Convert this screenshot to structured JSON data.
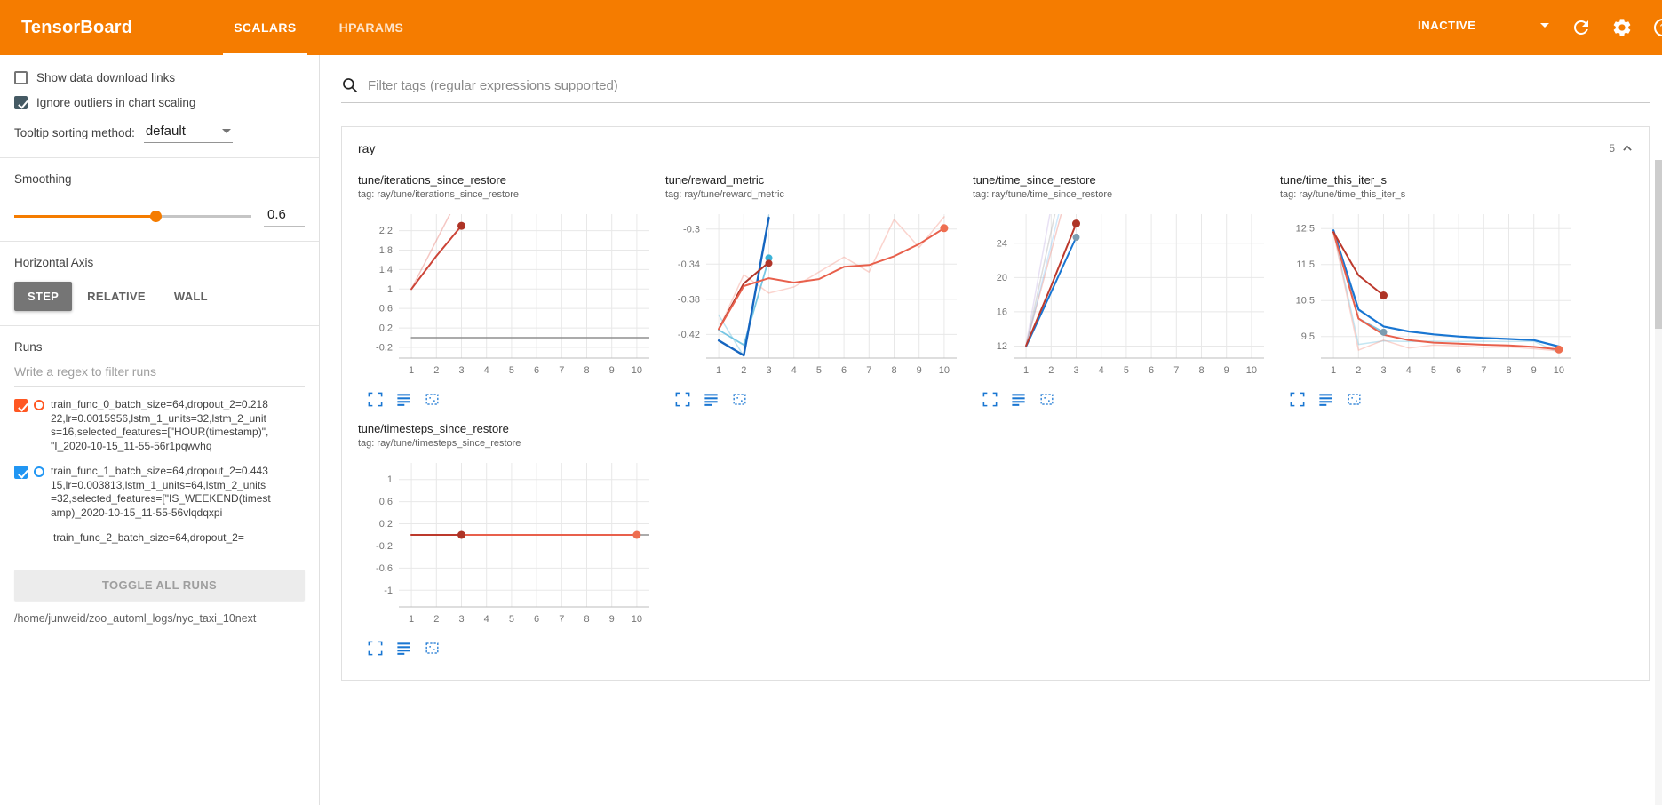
{
  "header": {
    "title": "TensorBoard",
    "tabs": [
      {
        "label": "SCALARS",
        "active": true
      },
      {
        "label": "HPARAMS",
        "active": false
      }
    ],
    "status": "INACTIVE"
  },
  "sidebar": {
    "checkboxes": [
      {
        "label": "Show data download links",
        "checked": false
      },
      {
        "label": "Ignore outliers in chart scaling",
        "checked": true
      }
    ],
    "tooltip_sorting": {
      "label": "Tooltip sorting method:",
      "value": "default"
    },
    "smoothing": {
      "label": "Smoothing",
      "value": "0.6",
      "percent": 60
    },
    "horizontal_axis": {
      "label": "Horizontal Axis",
      "options": [
        "STEP",
        "RELATIVE",
        "WALL"
      ],
      "selected": "STEP"
    },
    "runs": {
      "label": "Runs",
      "filter_placeholder": "Write a regex to filter runs",
      "items": [
        {
          "name": "train_func_0_batch_size=64,dropout_2=0.21822,lr=0.0015956,lstm_1_units=32,lstm_2_units=16,selected_features=[\"HOUR(timestamp)\", \"I_2020-10-15_11-55-56r1pqwvhq",
          "checked": true,
          "color": "#ff5722"
        },
        {
          "name": "train_func_1_batch_size=64,dropout_2=0.44315,lr=0.003813,lstm_1_units=64,lstm_2_units=32,selected_features=[\"IS_WEEKEND(timestamp)_2020-10-15_11-55-56vlqdqxpi",
          "checked": true,
          "color": "#2196f3"
        },
        {
          "name": "train_func_2_batch_size=64,dropout_2=",
          "checked": true
        }
      ],
      "toggle_all": "TOGGLE ALL RUNS",
      "path": "/home/junweid/zoo_automl_logs/nyc_taxi_10next"
    }
  },
  "main": {
    "filter_placeholder": "Filter tags (regular expressions supported)",
    "section": {
      "title": "ray",
      "count": "5"
    }
  },
  "chart_data": [
    {
      "type": "line",
      "title": "tune/iterations_since_restore",
      "tag": "tag: ray/tune/iterations_since_restore",
      "xlim": [
        0.5,
        10.5
      ],
      "ylim": [
        -0.42,
        2.54
      ],
      "xticks": [
        1,
        2,
        3,
        4,
        5,
        6,
        7,
        8,
        9,
        10
      ],
      "yticks": [
        -0.2,
        0.2,
        0.6,
        1,
        1.4,
        1.8,
        2.2
      ],
      "series": [
        {
          "name": "run0-raw",
          "color": "#e57368",
          "opacity": 0.4,
          "width": 1.5,
          "points": [
            [
              1,
              1
            ],
            [
              2,
              2
            ],
            [
              3,
              3
            ]
          ]
        },
        {
          "name": "run0-smoothed",
          "color": "#cc4437",
          "width": 2,
          "points": [
            [
              1,
              1
            ],
            [
              2,
              1.68
            ],
            [
              3,
              2.3
            ]
          ]
        },
        {
          "name": "baseline",
          "color": "#8f8f8f",
          "width": 1.5,
          "points": [
            [
              1,
              0
            ],
            [
              10.5,
              0
            ]
          ]
        }
      ],
      "markers": [
        {
          "x": 3,
          "y": 2.3,
          "color": "#ae3426"
        }
      ]
    },
    {
      "type": "line",
      "title": "tune/reward_metric",
      "tag": "tag: ray/tune/reward_metric",
      "xlim": [
        0.5,
        10.5
      ],
      "ylim": [
        -0.447,
        -0.283
      ],
      "xticks": [
        1,
        2,
        3,
        4,
        5,
        6,
        7,
        8,
        9,
        10
      ],
      "yticks": [
        -0.42,
        -0.38,
        -0.34,
        -0.3
      ],
      "series": [
        {
          "name": "lightblue-raw",
          "color": "#7ec8e3",
          "opacity": 0.5,
          "width": 1.5,
          "points": [
            [
              1,
              -0.398
            ],
            [
              2,
              -0.445
            ],
            [
              3,
              -0.284
            ]
          ]
        },
        {
          "name": "lightblue-smoothed",
          "color": "#55b9dd",
          "opacity": 0.8,
          "width": 1.8,
          "points": [
            [
              1,
              -0.415
            ],
            [
              2,
              -0.432
            ],
            [
              3,
              -0.334
            ]
          ]
        },
        {
          "name": "orange-raw",
          "color": "#f59384",
          "opacity": 0.4,
          "width": 1.5,
          "points": [
            [
              1,
              -0.414
            ],
            [
              2,
              -0.352
            ],
            [
              3,
              -0.373
            ],
            [
              4,
              -0.366
            ],
            [
              5,
              -0.349
            ],
            [
              6,
              -0.332
            ],
            [
              7,
              -0.349
            ],
            [
              8,
              -0.289
            ],
            [
              9,
              -0.321
            ],
            [
              10,
              -0.286
            ]
          ]
        },
        {
          "name": "blue",
          "color": "#1565c0",
          "width": 2.4,
          "points": [
            [
              1,
              -0.427
            ],
            [
              2,
              -0.444
            ],
            [
              3,
              -0.287
            ]
          ]
        },
        {
          "name": "darkred",
          "color": "#b03529",
          "width": 2,
          "points": [
            [
              1,
              -0.414
            ],
            [
              2,
              -0.362
            ],
            [
              3,
              -0.338
            ]
          ]
        },
        {
          "name": "orange-smoothed",
          "color": "#e8604c",
          "width": 2,
          "points": [
            [
              1,
              -0.414
            ],
            [
              2,
              -0.365
            ],
            [
              3,
              -0.356
            ],
            [
              4,
              -0.361
            ],
            [
              5,
              -0.357
            ],
            [
              6,
              -0.343
            ],
            [
              7,
              -0.341
            ],
            [
              8,
              -0.331
            ],
            [
              9,
              -0.317
            ],
            [
              10,
              -0.299
            ]
          ]
        }
      ],
      "markers": [
        {
          "x": 3,
          "y": -0.333,
          "color": "#3bb3d8",
          "r": 4
        },
        {
          "x": 3,
          "y": -0.339,
          "color": "#b03529",
          "r": 4
        },
        {
          "x": 10,
          "y": -0.299,
          "color": "#ee6e50"
        }
      ]
    },
    {
      "type": "line",
      "title": "tune/time_since_restore",
      "tag": "tag: ray/tune/time_since_restore",
      "xlim": [
        0.5,
        10.5
      ],
      "ylim": [
        10.6,
        27.4
      ],
      "xticks": [
        1,
        2,
        3,
        4,
        5,
        6,
        7,
        8,
        9,
        10
      ],
      "yticks": [
        12,
        16,
        20,
        24
      ],
      "series": [
        {
          "name": "faded-lavender",
          "color": "#b39ddb",
          "opacity": 0.3,
          "width": 1.5,
          "points": [
            [
              1,
              12.2
            ],
            [
              1.95,
              27.4
            ]
          ]
        },
        {
          "name": "faded-gray",
          "color": "#9e9e9e",
          "opacity": 0.35,
          "width": 1.5,
          "points": [
            [
              1,
              12.0
            ],
            [
              2.15,
              27.4
            ]
          ]
        },
        {
          "name": "faded-red",
          "color": "#e57368",
          "opacity": 0.35,
          "width": 1.5,
          "points": [
            [
              1,
              12.1
            ],
            [
              2.4,
              27.4
            ]
          ]
        },
        {
          "name": "faded-blue",
          "color": "#64b5f6",
          "opacity": 0.3,
          "width": 1.5,
          "points": [
            [
              1,
              11.9
            ],
            [
              2.3,
              27.4
            ]
          ]
        },
        {
          "name": "blue",
          "color": "#1976d2",
          "width": 2,
          "points": [
            [
              1,
              11.95
            ],
            [
              2,
              18.3
            ],
            [
              3,
              24.7
            ]
          ]
        },
        {
          "name": "darkred",
          "color": "#bc392c",
          "width": 2,
          "points": [
            [
              1,
              12.05
            ],
            [
              2,
              19.0
            ],
            [
              3,
              26.3
            ]
          ]
        }
      ],
      "markers": [
        {
          "x": 3,
          "y": 26.3,
          "color": "#ae3426"
        },
        {
          "x": 3,
          "y": 24.7,
          "color": "#7c9cb0",
          "r": 4
        }
      ]
    },
    {
      "type": "line",
      "title": "tune/time_this_iter_s",
      "tag": "tag: ray/tune/time_this_iter_s",
      "xlim": [
        0.5,
        10.5
      ],
      "ylim": [
        8.9,
        12.9
      ],
      "xticks": [
        1,
        2,
        3,
        4,
        5,
        6,
        7,
        8,
        9,
        10
      ],
      "yticks": [
        9.5,
        10.5,
        11.5,
        12.5
      ],
      "series": [
        {
          "name": "lightblue-raw",
          "color": "#7ec8e3",
          "opacity": 0.45,
          "width": 1.5,
          "points": [
            [
              1,
              12.45
            ],
            [
              2,
              9.28
            ],
            [
              3,
              9.38
            ],
            [
              4,
              9.36
            ],
            [
              5,
              9.37
            ],
            [
              6,
              9.36
            ],
            [
              7,
              9.37
            ],
            [
              8,
              9.36
            ],
            [
              9,
              9.37
            ],
            [
              10,
              9.05
            ]
          ]
        },
        {
          "name": "orange-raw",
          "color": "#f59384",
          "opacity": 0.4,
          "width": 1.5,
          "points": [
            [
              1,
              12.4
            ],
            [
              2,
              9.12
            ],
            [
              3,
              9.4
            ],
            [
              4,
              9.18
            ],
            [
              5,
              9.26
            ],
            [
              6,
              9.24
            ],
            [
              7,
              9.2
            ],
            [
              8,
              9.21
            ],
            [
              9,
              9.16
            ],
            [
              10,
              9.1
            ]
          ]
        },
        {
          "name": "lightblue-smoothed",
          "color": "#5bb8dc",
          "opacity": 0.8,
          "width": 1.8,
          "points": [
            [
              1,
              12.45
            ],
            [
              2,
              10.0
            ],
            [
              3,
              9.62
            ]
          ]
        },
        {
          "name": "blue",
          "color": "#1976d2",
          "width": 2.2,
          "points": [
            [
              1,
              12.45
            ],
            [
              2,
              10.25
            ],
            [
              3,
              9.78
            ],
            [
              4,
              9.64
            ],
            [
              5,
              9.56
            ],
            [
              6,
              9.5
            ],
            [
              7,
              9.46
            ],
            [
              8,
              9.43
            ],
            [
              9,
              9.4
            ],
            [
              10,
              9.22
            ]
          ]
        },
        {
          "name": "orange-smoothed",
          "color": "#e8604c",
          "width": 2,
          "points": [
            [
              1,
              12.4
            ],
            [
              2,
              10.0
            ],
            [
              3,
              9.55
            ],
            [
              4,
              9.4
            ],
            [
              5,
              9.33
            ],
            [
              6,
              9.3
            ],
            [
              7,
              9.27
            ],
            [
              8,
              9.25
            ],
            [
              9,
              9.21
            ],
            [
              10,
              9.14
            ]
          ]
        },
        {
          "name": "darkred",
          "color": "#bc392c",
          "width": 2,
          "points": [
            [
              1,
              12.4
            ],
            [
              2,
              11.2
            ],
            [
              3,
              10.64
            ]
          ]
        }
      ],
      "markers": [
        {
          "x": 3,
          "y": 10.64,
          "color": "#ae3426"
        },
        {
          "x": 3,
          "y": 9.62,
          "color": "#7c9cb0",
          "r": 4
        },
        {
          "x": 10,
          "y": 9.14,
          "color": "#ee6e50"
        }
      ]
    },
    {
      "type": "line",
      "title": "tune/timesteps_since_restore",
      "tag": "tag: ray/tune/timesteps_since_restore",
      "xlim": [
        0.5,
        10.5
      ],
      "ylim": [
        -1.3,
        1.3
      ],
      "xticks": [
        1,
        2,
        3,
        4,
        5,
        6,
        7,
        8,
        9,
        10
      ],
      "yticks": [
        -1,
        -0.6,
        -0.2,
        0.2,
        0.6,
        1
      ],
      "series": [
        {
          "name": "baseline",
          "color": "#8f8f8f",
          "width": 1.5,
          "points": [
            [
              1,
              0
            ],
            [
              10.5,
              0
            ]
          ]
        },
        {
          "name": "orange",
          "color": "#e8604c",
          "width": 2,
          "points": [
            [
              1,
              0
            ],
            [
              10,
              0
            ]
          ]
        },
        {
          "name": "darkred",
          "color": "#bc392c",
          "width": 2,
          "points": [
            [
              1,
              0
            ],
            [
              3,
              0
            ]
          ]
        }
      ],
      "markers": [
        {
          "x": 3,
          "y": 0,
          "color": "#ae3426"
        },
        {
          "x": 10,
          "y": 0,
          "color": "#ee6e50"
        }
      ]
    }
  ]
}
